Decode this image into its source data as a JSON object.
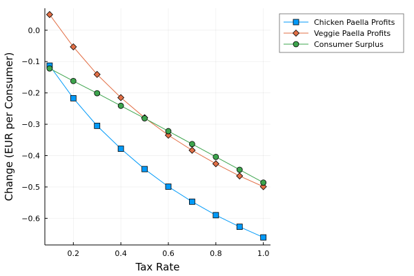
{
  "chart_data": {
    "type": "line",
    "title": "",
    "xlabel": "Tax Rate",
    "ylabel": "Change (EUR per Consumer)",
    "xlim": [
      0.08,
      1.03
    ],
    "ylim": [
      -0.685,
      0.07
    ],
    "xticks": [
      0.2,
      0.4,
      0.6,
      0.8,
      1.0
    ],
    "xtick_labels": [
      "0.2",
      "0.4",
      "0.6",
      "0.8",
      "1.0"
    ],
    "yticks": [
      0.0,
      -0.1,
      -0.2,
      -0.3,
      -0.4,
      -0.5,
      -0.6
    ],
    "ytick_labels": [
      "0.0",
      "−0.1",
      "−0.2",
      "−0.3",
      "−0.4",
      "−0.5",
      "−0.6"
    ],
    "grid": true,
    "legend_position": "outside-top-right",
    "series": [
      {
        "name": "Chicken Paella Profits",
        "color": "#009af9",
        "marker": "square",
        "x": [
          0.1,
          0.2,
          0.3,
          0.4,
          0.5,
          0.6,
          0.7,
          0.8,
          0.9,
          1.0
        ],
        "y": [
          -0.113,
          -0.217,
          -0.305,
          -0.378,
          -0.443,
          -0.499,
          -0.547,
          -0.59,
          -0.627,
          -0.661
        ]
      },
      {
        "name": "Veggie Paella Profits",
        "color": "#e26f46",
        "marker": "diamond",
        "x": [
          0.1,
          0.2,
          0.3,
          0.4,
          0.5,
          0.6,
          0.7,
          0.8,
          0.9,
          1.0
        ],
        "y": [
          0.05,
          -0.053,
          -0.141,
          -0.215,
          -0.279,
          -0.335,
          -0.383,
          -0.426,
          -0.465,
          -0.499
        ]
      },
      {
        "name": "Consumer Surplus",
        "color": "#3da44d",
        "marker": "circle",
        "x": [
          0.1,
          0.2,
          0.3,
          0.4,
          0.5,
          0.6,
          0.7,
          0.8,
          0.9,
          1.0
        ],
        "y": [
          -0.122,
          -0.162,
          -0.201,
          -0.241,
          -0.281,
          -0.322,
          -0.363,
          -0.404,
          -0.445,
          -0.486
        ]
      }
    ]
  }
}
